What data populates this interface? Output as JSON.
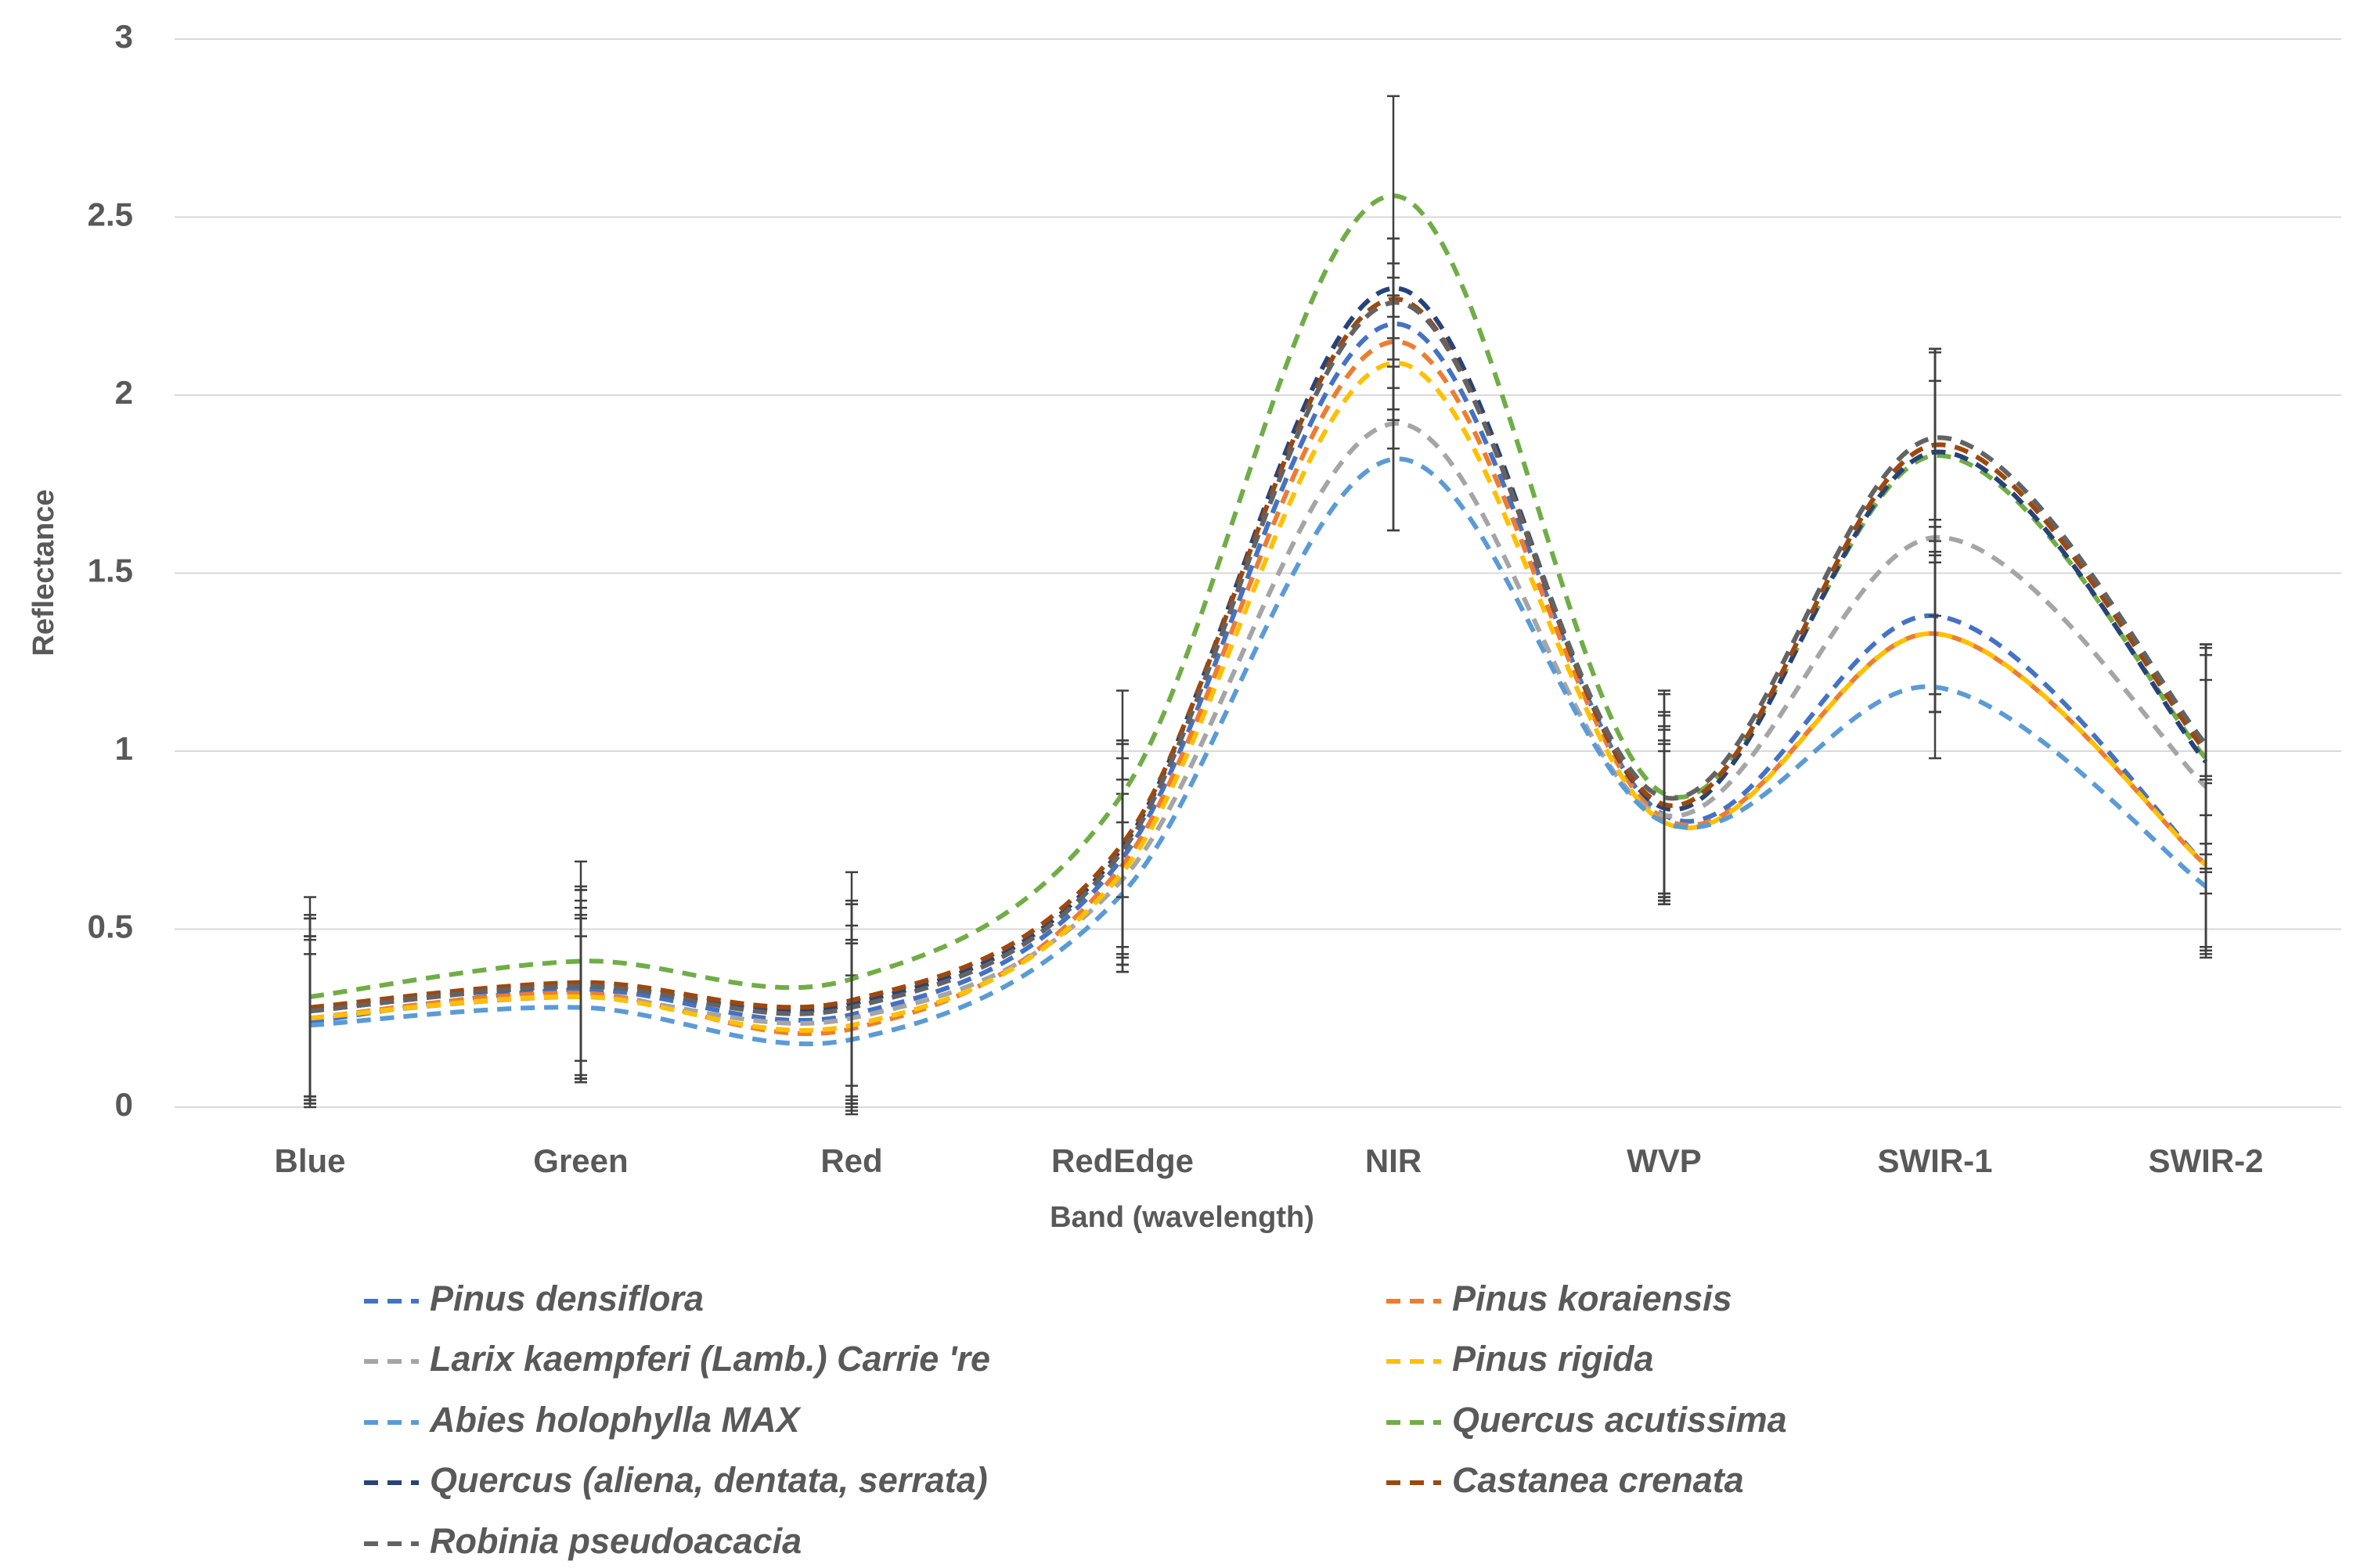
{
  "chart_data": {
    "type": "line",
    "x_label": "Band (wavelength)",
    "y_label": "Reflectance",
    "categories": [
      "Blue",
      "Green",
      "Red",
      "RedEdge",
      "NIR",
      "WVP",
      "SWIR-1",
      "SWIR-2"
    ],
    "ylim": [
      0,
      3
    ],
    "yticks": [
      0,
      0.5,
      1,
      1.5,
      2,
      2.5,
      3
    ],
    "grid": true,
    "smooth": true,
    "dashed": true,
    "series": [
      {
        "name": "Pinus densiflora",
        "color": "#4472c4",
        "values": [
          0.24,
          0.33,
          0.26,
          0.7,
          2.2,
          0.82,
          1.38,
          0.68
        ],
        "errors": [
          0.24,
          0.25,
          0.25,
          0.32,
          0.24,
          0.24,
          0.27,
          0.25
        ]
      },
      {
        "name": "Pinus koraiensis",
        "color": "#ed7d31",
        "values": [
          0.25,
          0.32,
          0.22,
          0.68,
          2.15,
          0.81,
          1.33,
          0.68
        ],
        "errors": [
          0.23,
          0.24,
          0.24,
          0.3,
          0.22,
          0.22,
          0.22,
          0.23
        ]
      },
      {
        "name": "Larix kaempferi (Lamb.) Carrie 're",
        "color": "#a5a5a5",
        "values": [
          0.25,
          0.31,
          0.25,
          0.64,
          1.92,
          0.82,
          1.6,
          0.9
        ],
        "errors": [
          0.22,
          0.23,
          0.22,
          0.24,
          0.3,
          0.25,
          0.44,
          0.3
        ]
      },
      {
        "name": "Pinus rigida",
        "color": "#ffc000",
        "values": [
          0.25,
          0.31,
          0.23,
          0.66,
          2.09,
          0.8,
          1.33,
          0.68
        ],
        "errors": [
          0.23,
          0.22,
          0.23,
          0.26,
          0.24,
          0.22,
          0.22,
          0.24
        ]
      },
      {
        "name": "Abies holophylla MAX",
        "color": "#5b9bd5",
        "values": [
          0.23,
          0.28,
          0.19,
          0.6,
          1.82,
          0.8,
          1.18,
          0.62
        ],
        "errors": [
          0.2,
          0.2,
          0.18,
          0.2,
          0.2,
          0.2,
          0.2,
          0.2
        ]
      },
      {
        "name": "Quercus acutissima",
        "color": "#70ad47",
        "values": [
          0.31,
          0.41,
          0.36,
          0.88,
          2.56,
          0.88,
          1.83,
          0.98
        ],
        "errors": [
          0.28,
          0.28,
          0.3,
          0.29,
          0.28,
          0.29,
          0.3,
          0.32
        ]
      },
      {
        "name": "Quercus (aliena, dentata, serrata)",
        "color": "#264478",
        "values": [
          0.27,
          0.34,
          0.29,
          0.73,
          2.3,
          0.84,
          1.84,
          0.97
        ],
        "errors": [
          0.26,
          0.27,
          0.28,
          0.3,
          0.14,
          0.27,
          0.28,
          0.3
        ]
      },
      {
        "name": "Castanea crenata",
        "color": "#9e480e",
        "values": [
          0.28,
          0.35,
          0.3,
          0.74,
          2.27,
          0.85,
          1.86,
          1.0
        ],
        "errors": [
          0.26,
          0.27,
          0.28,
          0.29,
          0.17,
          0.25,
          0.27,
          0.29
        ]
      },
      {
        "name": "Robinia pseudoacacia",
        "color": "#636363",
        "values": [
          0.27,
          0.34,
          0.28,
          0.72,
          2.26,
          0.87,
          1.88,
          1.02
        ],
        "errors": [
          0.26,
          0.27,
          0.29,
          0.3,
          0.18,
          0.29,
          0.25,
          0.28
        ]
      }
    ]
  }
}
